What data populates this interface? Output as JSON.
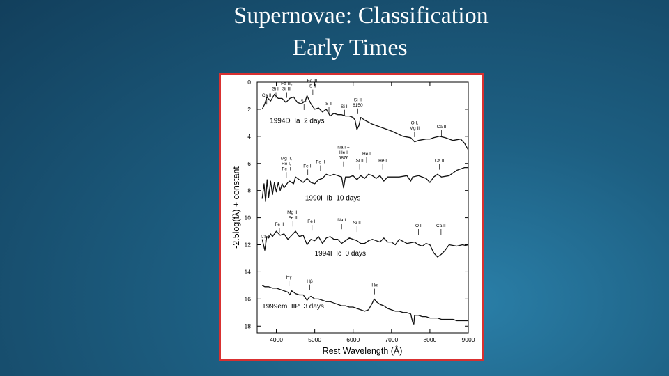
{
  "slide": {
    "title_line1": "Supernovae: Classification",
    "title_line2": "Early Times",
    "figure_border_color": "#d93030"
  },
  "chart_data": {
    "type": "line",
    "xlabel": "Rest Wavelength (Å)",
    "ylabel": "-2.5log(fλ) + constant",
    "xlim": [
      3500,
      9000
    ],
    "ylim": [
      0,
      18.5
    ],
    "y_inverted": true,
    "x_ticks": [
      4000,
      5000,
      6000,
      7000,
      8000,
      9000
    ],
    "y_ticks": [
      0,
      2,
      4,
      6,
      8,
      10,
      12,
      14,
      16,
      18
    ],
    "series": [
      {
        "name": "1994D  Ia  2 days",
        "label_pos": [
          3830,
          3.0
        ],
        "points": [
          [
            3630,
            2.0
          ],
          [
            3700,
            1.6
          ],
          [
            3750,
            1.1
          ],
          [
            3850,
            1.4
          ],
          [
            3950,
            0.9
          ],
          [
            4050,
            1.2
          ],
          [
            4150,
            1.2
          ],
          [
            4250,
            1.5
          ],
          [
            4350,
            1.2
          ],
          [
            4450,
            1.1
          ],
          [
            4550,
            1.5
          ],
          [
            4650,
            1.6
          ],
          [
            4750,
            1.4
          ],
          [
            4800,
            1.0
          ],
          [
            4900,
            1.6
          ],
          [
            5000,
            2.0
          ],
          [
            5100,
            1.9
          ],
          [
            5200,
            2.2
          ],
          [
            5300,
            2.0
          ],
          [
            5400,
            2.5
          ],
          [
            5500,
            2.3
          ],
          [
            5600,
            2.4
          ],
          [
            5700,
            2.4
          ],
          [
            5800,
            2.5
          ],
          [
            5900,
            2.5
          ],
          [
            6000,
            2.6
          ],
          [
            6050,
            2.8
          ],
          [
            6100,
            3.5
          ],
          [
            6150,
            3.2
          ],
          [
            6200,
            2.6
          ],
          [
            6300,
            2.8
          ],
          [
            6500,
            3.1
          ],
          [
            6700,
            3.3
          ],
          [
            7000,
            3.6
          ],
          [
            7300,
            4.0
          ],
          [
            7500,
            4.1
          ],
          [
            7600,
            4.4
          ],
          [
            7700,
            4.3
          ],
          [
            7900,
            4.2
          ],
          [
            8000,
            4.2
          ],
          [
            8100,
            4.1
          ],
          [
            8250,
            4.0
          ],
          [
            8400,
            4.1
          ],
          [
            8600,
            4.3
          ],
          [
            8800,
            4.2
          ],
          [
            8900,
            4.5
          ],
          [
            9000,
            5.0
          ]
        ]
      },
      {
        "name": "1990I  Ib  10 days",
        "label_pos": [
          4750,
          8.7
        ],
        "points": [
          [
            3630,
            8.6
          ],
          [
            3680,
            7.5
          ],
          [
            3720,
            8.8
          ],
          [
            3760,
            7.2
          ],
          [
            3800,
            8.5
          ],
          [
            3850,
            7.3
          ],
          [
            3900,
            8.3
          ],
          [
            3950,
            7.4
          ],
          [
            4000,
            8.1
          ],
          [
            4050,
            7.4
          ],
          [
            4100,
            8.0
          ],
          [
            4150,
            7.5
          ],
          [
            4200,
            7.8
          ],
          [
            4300,
            7.4
          ],
          [
            4350,
            7.3
          ],
          [
            4450,
            7.5
          ],
          [
            4500,
            7.0
          ],
          [
            4600,
            7.2
          ],
          [
            4700,
            7.4
          ],
          [
            4800,
            7.1
          ],
          [
            4900,
            7.4
          ],
          [
            5000,
            7.5
          ],
          [
            5100,
            7.2
          ],
          [
            5200,
            7.1
          ],
          [
            5300,
            6.8
          ],
          [
            5400,
            6.9
          ],
          [
            5500,
            6.8
          ],
          [
            5600,
            6.9
          ],
          [
            5700,
            7.0
          ],
          [
            5750,
            7.8
          ],
          [
            5800,
            7.0
          ],
          [
            5900,
            7.0
          ],
          [
            6000,
            6.9
          ],
          [
            6100,
            7.2
          ],
          [
            6200,
            6.9
          ],
          [
            6300,
            7.1
          ],
          [
            6400,
            6.8
          ],
          [
            6500,
            6.9
          ],
          [
            6600,
            7.1
          ],
          [
            6700,
            6.9
          ],
          [
            6800,
            7.3
          ],
          [
            6900,
            7.0
          ],
          [
            7000,
            7.0
          ],
          [
            7200,
            7.0
          ],
          [
            7400,
            6.9
          ],
          [
            7500,
            7.3
          ],
          [
            7550,
            7.0
          ],
          [
            7700,
            6.9
          ],
          [
            7900,
            7.1
          ],
          [
            8000,
            7.4
          ],
          [
            8100,
            7.0
          ],
          [
            8200,
            6.8
          ],
          [
            8300,
            7.0
          ],
          [
            8500,
            6.9
          ],
          [
            8700,
            6.5
          ],
          [
            8900,
            6.3
          ],
          [
            9000,
            6.3
          ]
        ]
      },
      {
        "name": "1994I  Ic  0 days",
        "label_pos": [
          5000,
          12.8
        ],
        "points": [
          [
            3630,
            11.6
          ],
          [
            3700,
            12.4
          ],
          [
            3750,
            11.4
          ],
          [
            3800,
            11.5
          ],
          [
            3850,
            11.2
          ],
          [
            3900,
            11.4
          ],
          [
            4000,
            11.0
          ],
          [
            4100,
            11.3
          ],
          [
            4200,
            11.2
          ],
          [
            4300,
            11.6
          ],
          [
            4400,
            11.3
          ],
          [
            4500,
            11.0
          ],
          [
            4600,
            11.4
          ],
          [
            4700,
            11.3
          ],
          [
            4800,
            12.0
          ],
          [
            4900,
            11.6
          ],
          [
            5000,
            11.7
          ],
          [
            5100,
            11.4
          ],
          [
            5200,
            11.9
          ],
          [
            5300,
            11.5
          ],
          [
            5400,
            11.4
          ],
          [
            5500,
            11.6
          ],
          [
            5600,
            11.6
          ],
          [
            5700,
            11.9
          ],
          [
            5800,
            11.7
          ],
          [
            5900,
            11.5
          ],
          [
            6000,
            11.6
          ],
          [
            6100,
            11.7
          ],
          [
            6200,
            11.9
          ],
          [
            6300,
            11.9
          ],
          [
            6400,
            11.7
          ],
          [
            6500,
            11.6
          ],
          [
            6600,
            11.7
          ],
          [
            6700,
            11.8
          ],
          [
            6800,
            11.5
          ],
          [
            6900,
            11.8
          ],
          [
            7000,
            11.8
          ],
          [
            7100,
            12.0
          ],
          [
            7200,
            11.6
          ],
          [
            7400,
            11.9
          ],
          [
            7600,
            11.8
          ],
          [
            7700,
            12.0
          ],
          [
            7800,
            12.1
          ],
          [
            7900,
            11.9
          ],
          [
            8000,
            12.0
          ],
          [
            8100,
            12.6
          ],
          [
            8200,
            12.9
          ],
          [
            8300,
            12.7
          ],
          [
            8400,
            12.4
          ],
          [
            8500,
            12.0
          ],
          [
            8700,
            12.1
          ],
          [
            8850,
            12.0
          ],
          [
            9000,
            12.1
          ]
        ]
      },
      {
        "name": "1999em  IIP  3 days",
        "label_pos": [
          3630,
          16.7
        ],
        "points": [
          [
            3630,
            15.0
          ],
          [
            3700,
            15.1
          ],
          [
            3800,
            15.1
          ],
          [
            3900,
            15.2
          ],
          [
            4000,
            15.2
          ],
          [
            4100,
            15.3
          ],
          [
            4200,
            15.4
          ],
          [
            4300,
            15.5
          ],
          [
            4350,
            15.7
          ],
          [
            4400,
            15.4
          ],
          [
            4500,
            15.6
          ],
          [
            4600,
            15.7
          ],
          [
            4700,
            15.7
          ],
          [
            4800,
            16.1
          ],
          [
            4850,
            15.9
          ],
          [
            4900,
            15.8
          ],
          [
            5000,
            16.0
          ],
          [
            5100,
            16.0
          ],
          [
            5200,
            16.1
          ],
          [
            5300,
            16.2
          ],
          [
            5400,
            16.2
          ],
          [
            5500,
            16.3
          ],
          [
            5600,
            16.4
          ],
          [
            5700,
            16.5
          ],
          [
            5800,
            16.5
          ],
          [
            5900,
            16.6
          ],
          [
            6000,
            16.6
          ],
          [
            6100,
            16.7
          ],
          [
            6200,
            16.8
          ],
          [
            6300,
            16.9
          ],
          [
            6400,
            16.8
          ],
          [
            6500,
            16.3
          ],
          [
            6550,
            16.0
          ],
          [
            6600,
            16.2
          ],
          [
            6700,
            16.4
          ],
          [
            6800,
            16.5
          ],
          [
            6900,
            16.7
          ],
          [
            7000,
            16.8
          ],
          [
            7100,
            16.9
          ],
          [
            7200,
            16.9
          ],
          [
            7300,
            17.0
          ],
          [
            7400,
            17.0
          ],
          [
            7500,
            17.1
          ],
          [
            7550,
            17.7
          ],
          [
            7580,
            17.9
          ],
          [
            7600,
            17.2
          ],
          [
            7700,
            17.2
          ],
          [
            7800,
            17.3
          ],
          [
            7900,
            17.3
          ],
          [
            8000,
            17.4
          ],
          [
            8100,
            17.4
          ],
          [
            8200,
            17.4
          ],
          [
            8300,
            17.5
          ],
          [
            8400,
            17.5
          ],
          [
            8500,
            17.5
          ],
          [
            8600,
            17.5
          ],
          [
            8700,
            17.6
          ],
          [
            8800,
            17.6
          ],
          [
            8900,
            17.6
          ],
          [
            9000,
            17.6
          ]
        ]
      }
    ],
    "annotations": [
      {
        "lines": [
          "Si II"
        ],
        "x": 3990,
        "y": 1.0
      },
      {
        "lines": [
          "Ca II"
        ],
        "x": 3750,
        "y": 1.5
      },
      {
        "lines": [
          "Fe III,",
          "Si III"
        ],
        "x": 4270,
        "y": 1.0
      },
      {
        "lines": [
          "S II"
        ],
        "x": 4720,
        "y": 1.9
      },
      {
        "lines": [
          "Fe III,",
          "S II"
        ],
        "x": 4950,
        "y": 0.8
      },
      {
        "lines": [
          "S II"
        ],
        "x": 5370,
        "y": 2.1
      },
      {
        "lines": [
          "Si II"
        ],
        "x": 5780,
        "y": 2.3
      },
      {
        "lines": [
          "Si II",
          "6150"
        ],
        "x": 6120,
        "y": 2.2
      },
      {
        "lines": [
          "O I,",
          "Mg II"
        ],
        "x": 7600,
        "y": 3.9
      },
      {
        "lines": [
          "Ca II"
        ],
        "x": 8300,
        "y": 3.8
      },
      {
        "lines": [
          "Mg II,",
          "He I,",
          "Fe II"
        ],
        "x": 4260,
        "y": 6.9
      },
      {
        "lines": [
          "Fe II"
        ],
        "x": 4820,
        "y": 6.7
      },
      {
        "lines": [
          "Fe II"
        ],
        "x": 5150,
        "y": 6.4
      },
      {
        "lines": [
          "Na I +",
          "He I",
          "5876"
        ],
        "x": 5750,
        "y": 6.1
      },
      {
        "lines": [
          "He I"
        ],
        "x": 6350,
        "y": 5.8
      },
      {
        "lines": [
          "Si II"
        ],
        "x": 6170,
        "y": 6.3
      },
      {
        "lines": [
          "He I"
        ],
        "x": 6770,
        "y": 6.3
      },
      {
        "lines": [
          "Ca II"
        ],
        "x": 8250,
        "y": 6.3
      },
      {
        "lines": [
          "Mg II,",
          "Fe II"
        ],
        "x": 4430,
        "y": 10.5
      },
      {
        "lines": [
          "Fe II"
        ],
        "x": 4080,
        "y": 11.0
      },
      {
        "lines": [
          "Fe II"
        ],
        "x": 4930,
        "y": 10.8
      },
      {
        "lines": [
          "Na I"
        ],
        "x": 5700,
        "y": 10.7
      },
      {
        "lines": [
          "Si II"
        ],
        "x": 6100,
        "y": 10.9
      },
      {
        "lines": [
          "Ca II"
        ],
        "x": 3720,
        "y": 11.9
      },
      {
        "lines": [
          "O I"
        ],
        "x": 7700,
        "y": 11.1
      },
      {
        "lines": [
          "Ca II"
        ],
        "x": 8290,
        "y": 11.1
      },
      {
        "lines": [
          "Hγ"
        ],
        "x": 4330,
        "y": 14.9
      },
      {
        "lines": [
          "Hβ"
        ],
        "x": 4870,
        "y": 15.2
      },
      {
        "lines": [
          "Hα"
        ],
        "x": 6560,
        "y": 15.5
      }
    ]
  }
}
